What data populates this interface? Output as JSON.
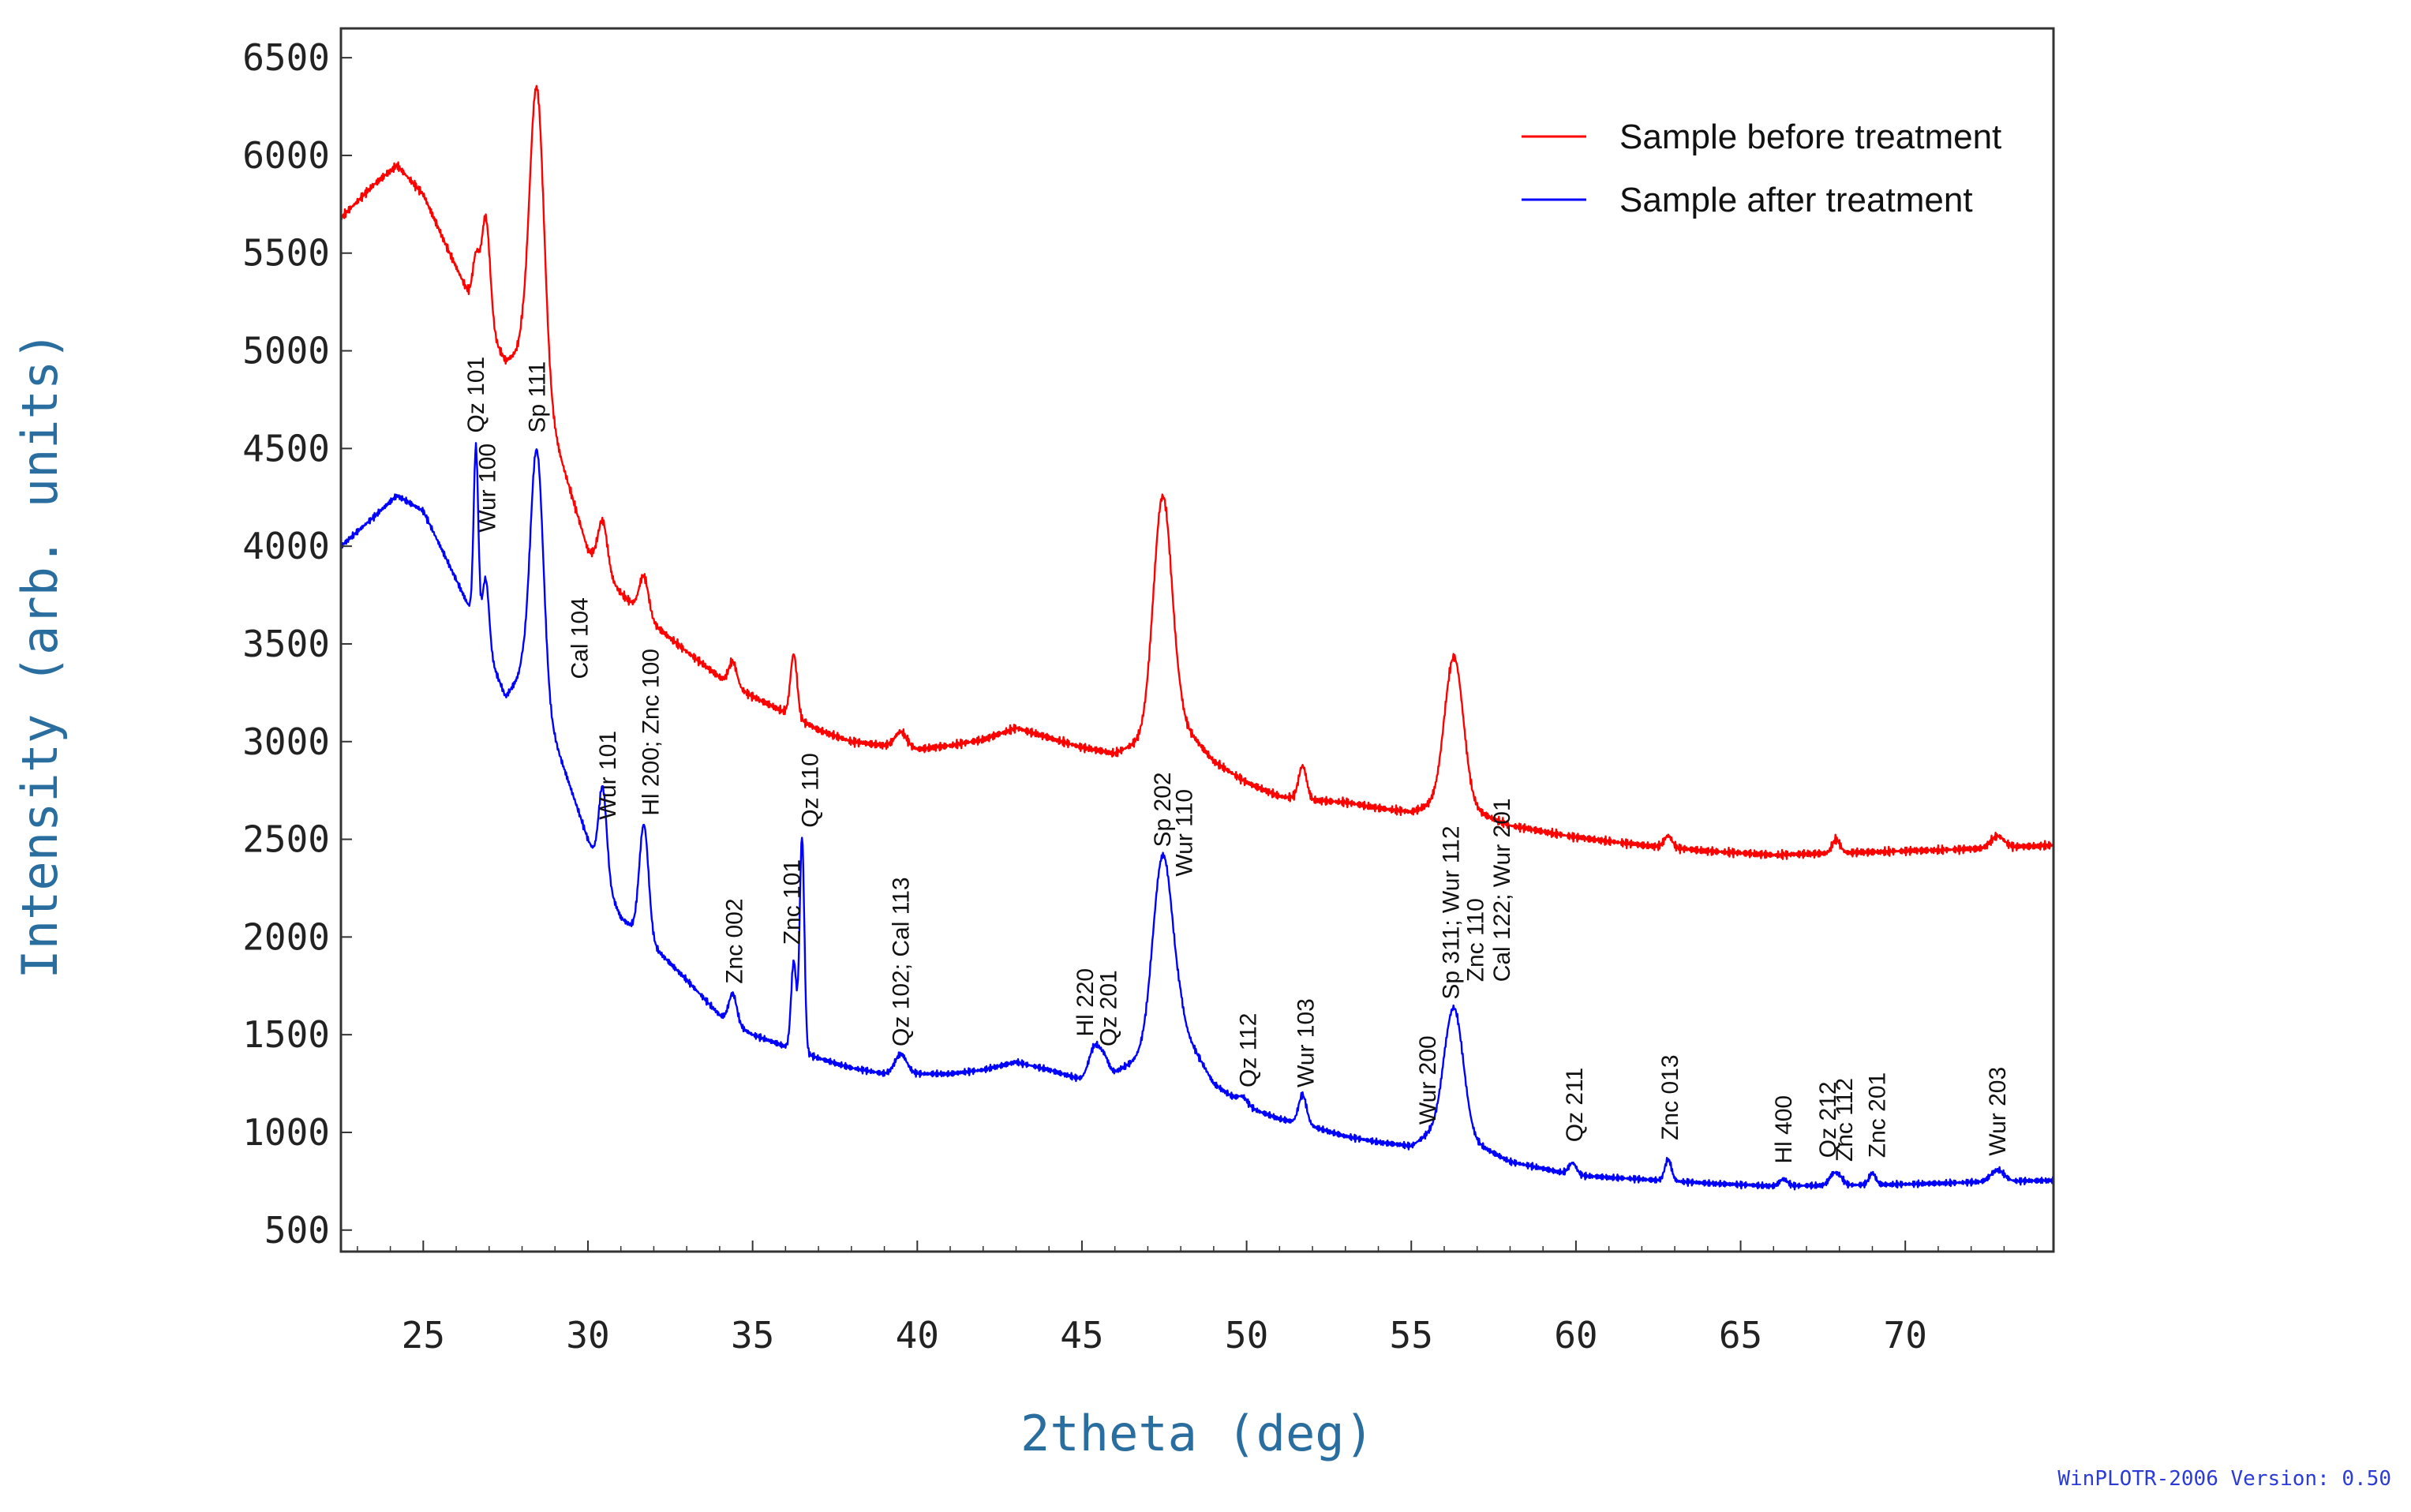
{
  "chart_data": {
    "type": "line",
    "xlabel": "2theta (deg)",
    "ylabel": "Intensity (arb. units)",
    "xlim": [
      22.5,
      74.5
    ],
    "ylim": [
      390,
      6650
    ],
    "xticks": [
      25,
      30,
      35,
      40,
      45,
      50,
      55,
      60,
      65,
      70
    ],
    "yticks": [
      500,
      1000,
      1500,
      2000,
      2500,
      3000,
      3500,
      4000,
      4500,
      5000,
      5500,
      6000,
      6500
    ],
    "grid": false,
    "legend_position": "top-right",
    "credit": "WinPLOTR-2006 Version: 0.50",
    "series": [
      {
        "name": "Sample before treatment",
        "color": "#ff0000",
        "background": [
          [
            22.5,
            5680
          ],
          [
            23.5,
            5850
          ],
          [
            24.2,
            5950
          ],
          [
            25,
            5800
          ],
          [
            25.8,
            5500
          ],
          [
            26.5,
            5250
          ],
          [
            27.5,
            4950
          ],
          [
            28,
            5000
          ],
          [
            29,
            4550
          ],
          [
            30,
            3980
          ],
          [
            31,
            3760
          ],
          [
            32,
            3600
          ],
          [
            33,
            3460
          ],
          [
            34,
            3330
          ],
          [
            35,
            3230
          ],
          [
            36,
            3150
          ],
          [
            37,
            3060
          ],
          [
            38,
            3000
          ],
          [
            39,
            2980
          ],
          [
            40,
            2960
          ],
          [
            41,
            2980
          ],
          [
            42,
            3010
          ],
          [
            43,
            3070
          ],
          [
            44,
            3020
          ],
          [
            45,
            2970
          ],
          [
            46,
            2940
          ],
          [
            47,
            3020
          ],
          [
            48,
            3100
          ],
          [
            49,
            2900
          ],
          [
            50,
            2790
          ],
          [
            51,
            2720
          ],
          [
            52,
            2700
          ],
          [
            53,
            2690
          ],
          [
            54,
            2660
          ],
          [
            55,
            2640
          ],
          [
            56,
            2700
          ],
          [
            57,
            2640
          ],
          [
            58,
            2570
          ],
          [
            60,
            2510
          ],
          [
            62,
            2470
          ],
          [
            64,
            2440
          ],
          [
            66,
            2420
          ],
          [
            68,
            2430
          ],
          [
            70,
            2440
          ],
          [
            72,
            2450
          ],
          [
            74.5,
            2470
          ]
        ],
        "peaks": [
          [
            26.6,
            250,
            0.1
          ],
          [
            26.9,
            550,
            0.13
          ],
          [
            28.45,
            1550,
            0.22
          ],
          [
            30.45,
            250,
            0.14
          ],
          [
            31.7,
            200,
            0.14
          ],
          [
            34.4,
            120,
            0.12
          ],
          [
            36.25,
            320,
            0.1
          ],
          [
            39.5,
            80,
            0.18
          ],
          [
            47.45,
            1200,
            0.28
          ],
          [
            51.7,
            170,
            0.12
          ],
          [
            56.3,
            750,
            0.28
          ],
          [
            62.8,
            60,
            0.12
          ],
          [
            67.9,
            70,
            0.12
          ],
          [
            72.8,
            60,
            0.2
          ]
        ]
      },
      {
        "name": "Sample after treatment",
        "color": "#0000ff",
        "background": [
          [
            22.5,
            4000
          ],
          [
            23.5,
            4150
          ],
          [
            24.2,
            4260
          ],
          [
            25,
            4180
          ],
          [
            25.8,
            3900
          ],
          [
            26.5,
            3650
          ],
          [
            27.5,
            3230
          ],
          [
            28,
            3350
          ],
          [
            29,
            3000
          ],
          [
            30,
            2500
          ],
          [
            31,
            2100
          ],
          [
            32,
            1950
          ],
          [
            33,
            1780
          ],
          [
            34,
            1600
          ],
          [
            35,
            1500
          ],
          [
            36,
            1440
          ],
          [
            37,
            1380
          ],
          [
            38,
            1330
          ],
          [
            39,
            1300
          ],
          [
            40,
            1300
          ],
          [
            41,
            1300
          ],
          [
            42,
            1320
          ],
          [
            43,
            1360
          ],
          [
            44,
            1320
          ],
          [
            45,
            1270
          ],
          [
            46,
            1310
          ],
          [
            47,
            1400
          ],
          [
            48,
            1550
          ],
          [
            49,
            1250
          ],
          [
            50,
            1130
          ],
          [
            51,
            1070
          ],
          [
            52,
            1030
          ],
          [
            53,
            980
          ],
          [
            54,
            950
          ],
          [
            55,
            930
          ],
          [
            56,
            1050
          ],
          [
            57,
            940
          ],
          [
            58,
            850
          ],
          [
            60,
            780
          ],
          [
            62,
            760
          ],
          [
            64,
            740
          ],
          [
            66,
            725
          ],
          [
            68,
            730
          ],
          [
            70,
            735
          ],
          [
            72,
            745
          ],
          [
            74.5,
            755
          ]
        ],
        "peaks": [
          [
            26.6,
            900,
            0.07
          ],
          [
            26.9,
            350,
            0.1
          ],
          [
            28.45,
            1300,
            0.2
          ],
          [
            30.45,
            450,
            0.12
          ],
          [
            31.7,
            580,
            0.14
          ],
          [
            34.4,
            150,
            0.12
          ],
          [
            36.25,
            450,
            0.08
          ],
          [
            36.5,
            1100,
            0.07
          ],
          [
            39.5,
            100,
            0.18
          ],
          [
            45.4,
            160,
            0.18
          ],
          [
            45.7,
            60,
            0.12
          ],
          [
            47.45,
            950,
            0.3
          ],
          [
            49.9,
            40,
            0.15
          ],
          [
            51.7,
            150,
            0.12
          ],
          [
            56.3,
            620,
            0.28
          ],
          [
            59.9,
            60,
            0.12
          ],
          [
            62.8,
            110,
            0.1
          ],
          [
            66.3,
            35,
            0.12
          ],
          [
            67.8,
            50,
            0.12
          ],
          [
            68.0,
            40,
            0.12
          ],
          [
            69.0,
            60,
            0.1
          ],
          [
            72.8,
            60,
            0.2
          ]
        ]
      }
    ],
    "annotations": [
      {
        "text": "Qz 101",
        "x": 26.6,
        "y": 4580
      },
      {
        "text": "Wur 100",
        "x": 26.95,
        "y": 4070
      },
      {
        "text": "Sp 111",
        "x": 28.45,
        "y": 4580
      },
      {
        "text": "Cal 104",
        "x": 29.75,
        "y": 3320
      },
      {
        "text": "Wur 101",
        "x": 30.6,
        "y": 2600
      },
      {
        "text": "Hl 200; Znc 100",
        "x": 31.9,
        "y": 2620
      },
      {
        "text": "Znc 002",
        "x": 34.45,
        "y": 1760
      },
      {
        "text": "Znc 101",
        "x": 36.2,
        "y": 1960
      },
      {
        "text": "Qz 110",
        "x": 36.75,
        "y": 2560
      },
      {
        "text": "Qz 102; Cal 113",
        "x": 39.5,
        "y": 1440
      },
      {
        "text": "Hl  220",
        "x": 45.1,
        "y": 1490
      },
      {
        "text": "Qz 201",
        "x": 45.8,
        "y": 1440
      },
      {
        "text": "Sp 202",
        "x": 47.45,
        "y": 2460
      },
      {
        "text": "Wur 110",
        "x": 48.1,
        "y": 2310
      },
      {
        "text": "Qz 112",
        "x": 50.05,
        "y": 1230
      },
      {
        "text": "Wur 103",
        "x": 51.8,
        "y": 1230
      },
      {
        "text": "Wur 200",
        "x": 55.5,
        "y": 1040
      },
      {
        "text": "Sp 311; Wur 112",
        "x": 56.2,
        "y": 1680
      },
      {
        "text": "Znc  110",
        "x": 56.95,
        "y": 1770
      },
      {
        "text": "Cal 122; Wur 201",
        "x": 57.75,
        "y": 1770
      },
      {
        "text": "Qz 211",
        "x": 59.95,
        "y": 950
      },
      {
        "text": "Znc 013",
        "x": 62.85,
        "y": 960
      },
      {
        "text": "Hl 400",
        "x": 66.3,
        "y": 840
      },
      {
        "text": "Qz  212",
        "x": 67.65,
        "y": 870
      },
      {
        "text": "Znc 112",
        "x": 68.15,
        "y": 850
      },
      {
        "text": "Znc 201",
        "x": 69.15,
        "y": 870
      },
      {
        "text": "Wur 203",
        "x": 72.8,
        "y": 880
      }
    ]
  }
}
